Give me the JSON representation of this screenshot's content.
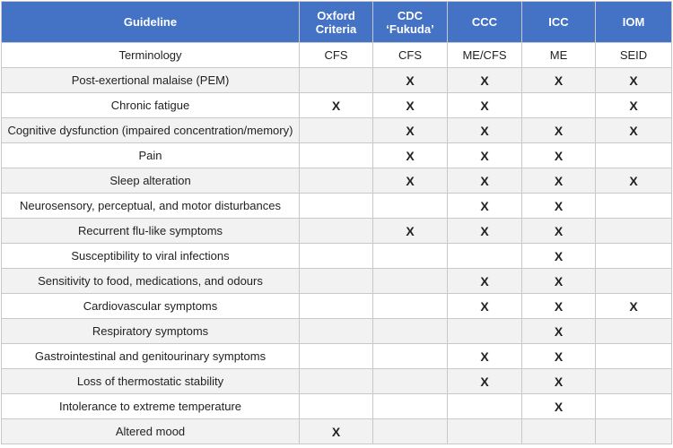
{
  "table": {
    "header": [
      "Guideline",
      "Oxford Criteria",
      "CDC ‘Fukuda’",
      "CCC",
      "ICC",
      "IOM"
    ],
    "rows": [
      [
        "Terminology",
        "CFS",
        "CFS",
        "ME/CFS",
        "ME",
        "SEID"
      ],
      [
        "Post-exertional malaise (PEM)",
        null,
        "X",
        "X",
        "X",
        "X"
      ],
      [
        "Chronic fatigue",
        "X",
        "X",
        "X",
        null,
        "X"
      ],
      [
        "Cognitive dysfunction (impaired concentration/memory)",
        null,
        "X",
        "X",
        "X",
        "X"
      ],
      [
        "Pain",
        null,
        "X",
        "X",
        "X",
        null
      ],
      [
        "Sleep alteration",
        null,
        "X",
        "X",
        "X",
        "X"
      ],
      [
        "Neurosensory, perceptual, and motor disturbances",
        null,
        null,
        "X",
        "X",
        null
      ],
      [
        "Recurrent flu-like symptoms",
        null,
        "X",
        "X",
        "X",
        null
      ],
      [
        "Susceptibility to viral infections",
        null,
        null,
        null,
        "X",
        null
      ],
      [
        "Sensitivity to food, medications, and odours",
        null,
        null,
        "X",
        "X",
        null
      ],
      [
        "Cardiovascular symptoms",
        null,
        null,
        "X",
        "X",
        "X"
      ],
      [
        "Respiratory symptoms",
        null,
        null,
        null,
        "X",
        null
      ],
      [
        "Gastrointestinal and genitourinary symptoms",
        null,
        null,
        "X",
        "X",
        null
      ],
      [
        "Loss of thermostatic stability",
        null,
        null,
        "X",
        "X",
        null
      ],
      [
        "Intolerance to extreme temperature",
        null,
        null,
        null,
        "X",
        null
      ],
      [
        "Altered mood",
        "X",
        null,
        null,
        null,
        null
      ]
    ]
  }
}
